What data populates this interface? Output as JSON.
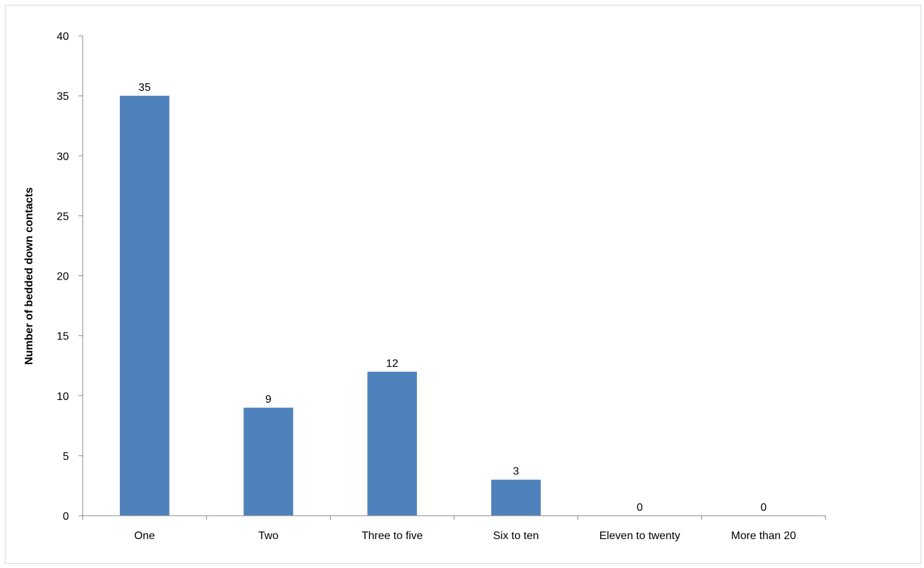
{
  "chart_data": {
    "type": "bar",
    "categories": [
      "One",
      "Two",
      "Three to five",
      "Six to ten",
      "Eleven to twenty",
      "More than 20"
    ],
    "values": [
      35,
      9,
      12,
      3,
      0,
      0
    ],
    "data_labels": [
      "35",
      "9",
      "12",
      "3",
      "0",
      "0"
    ],
    "title": "",
    "xlabel": "",
    "ylabel": "Number of bedded down contacts",
    "ylim": [
      0,
      40
    ],
    "yticks": [
      "0",
      "5",
      "10",
      "15",
      "20",
      "25",
      "30",
      "35",
      "40"
    ],
    "grid": false,
    "legend": "none",
    "bar_color": "#4F81BD"
  }
}
